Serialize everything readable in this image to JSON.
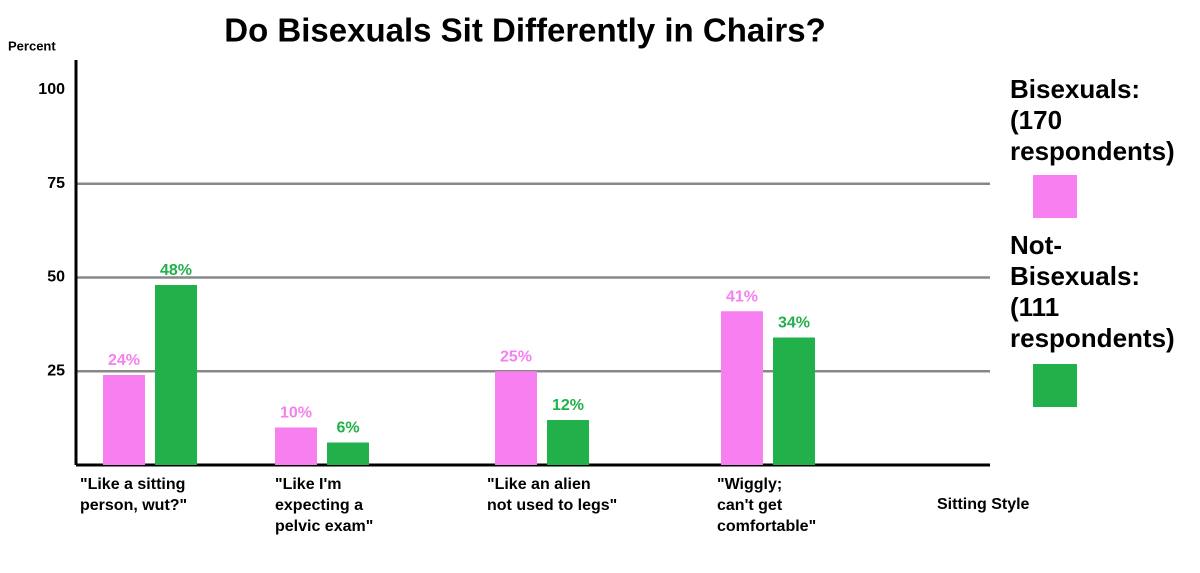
{
  "chart_data": {
    "type": "bar",
    "title": "Do Bisexuals Sit Differently in Chairs?",
    "y_label": "Percent",
    "x_label": "Sitting Style",
    "categories": [
      "\"Like a sitting\nperson, wut?\"",
      "\"Like I'm\nexpecting a\npelvic exam\"",
      "\"Like an alien\nnot used to legs\"",
      "\"Wiggly;\ncan't get\ncomfortable\""
    ],
    "series": [
      {
        "name": "Bisexuals:\n(170\nrespondents)",
        "color": "#f77ff0",
        "values": [
          24,
          10,
          25,
          41
        ],
        "value_labels": [
          "24%",
          "10%",
          "25%",
          "41%"
        ]
      },
      {
        "name": "Not-\nBisexuals:\n(111\nrespondents)",
        "color": "#22b04b",
        "values": [
          48,
          6,
          12,
          34
        ],
        "value_labels": [
          "48%",
          "6%",
          "12%",
          "34%"
        ]
      }
    ],
    "ylim": [
      0,
      108
    ],
    "yticks": [
      25,
      50,
      75,
      100
    ],
    "grid_ticks": [
      25,
      50,
      75
    ],
    "legend": "right"
  }
}
